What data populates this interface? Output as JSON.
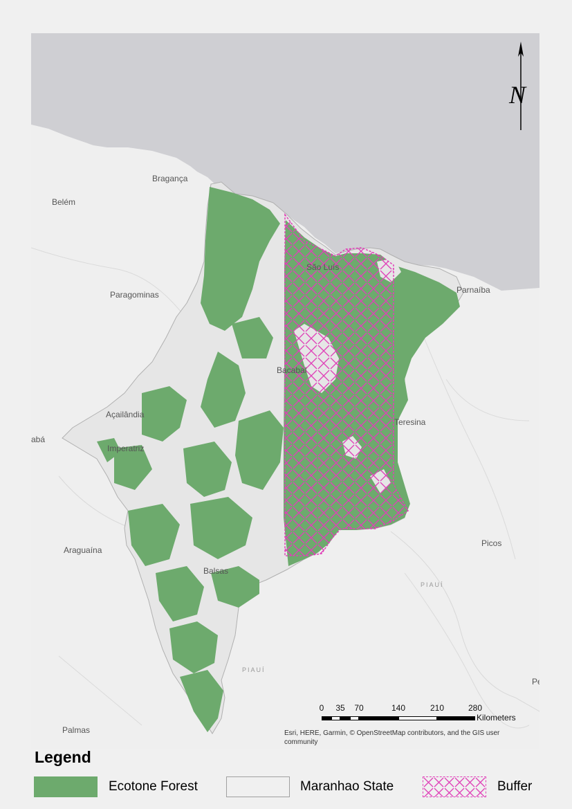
{
  "cities": [
    {
      "name": "Bragança",
      "label": "Bragança"
    },
    {
      "name": "Belém",
      "label": "Belém"
    },
    {
      "name": "Paragominas",
      "label": "Paragominas"
    },
    {
      "name": "São Luís",
      "label": "São Luís"
    },
    {
      "name": "Parnaíba",
      "label": "Parnaíba"
    },
    {
      "name": "Bacabal",
      "label": "Bacabal"
    },
    {
      "name": "Açailândia",
      "label": "Açailândia"
    },
    {
      "name": "Imperatriz",
      "label": "Imperatriz"
    },
    {
      "name": "Teresina",
      "label": "Teresina"
    },
    {
      "name": "Araguaína",
      "label": "Araguaína"
    },
    {
      "name": "Balsas",
      "label": "Balsas"
    },
    {
      "name": "Picos",
      "label": "Picos"
    },
    {
      "name": "Palmas",
      "label": "Palmas"
    },
    {
      "name": "Marabá (partial)",
      "label": "abá"
    },
    {
      "name": "Pe (partial)",
      "label": "Pe"
    }
  ],
  "state_labels": [
    "PIAUÍ",
    "PIAUÍ"
  ],
  "north_arrow": {
    "label": "N"
  },
  "scale_bar": {
    "ticks": [
      "0",
      "35",
      "70",
      "140",
      "210",
      "280"
    ],
    "unit": "Kilometers"
  },
  "attribution": "Esri, HERE, Garmin, © OpenStreetMap contributors, and the GIS user community",
  "legend": {
    "title": "Legend",
    "items": [
      {
        "label": "Ecotone Forest",
        "color": "#6daa6d"
      },
      {
        "label": "Maranhao State",
        "color": "#e6e6e6"
      },
      {
        "label": "Buffer",
        "color": "#e040b8"
      }
    ]
  },
  "colors": {
    "ocean": "#cfcfd3",
    "land": "#efefef",
    "state_fill": "#e6e6e6",
    "forest": "#6daa6d",
    "buffer_hatch": "#e040b8"
  }
}
